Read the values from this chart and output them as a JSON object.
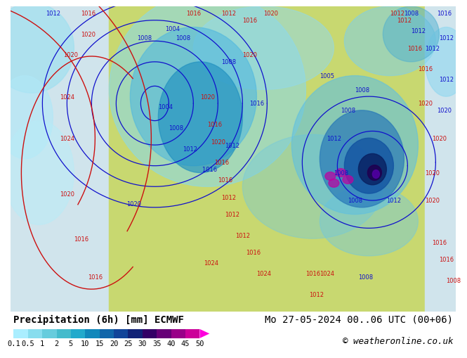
{
  "title_left": "Precipitation (6h) [mm] ECMWF",
  "title_right": "Mo 27-05-2024 00..06 UTC (00+06)",
  "copyright": "© weatheronline.co.uk",
  "colorbar_levels": [
    0.1,
    0.5,
    1,
    2,
    5,
    10,
    15,
    20,
    25,
    30,
    35,
    40,
    45,
    50
  ],
  "colorbar_colors": [
    "#aaeeff",
    "#88ddee",
    "#66ccdd",
    "#44bbcc",
    "#22aacc",
    "#1188bb",
    "#1166aa",
    "#114499",
    "#112277",
    "#330066",
    "#660077",
    "#990088",
    "#cc0099",
    "#ee00bb",
    "#ff00dd"
  ],
  "ocean_color": "#c8dce8",
  "land_color": "#e8e8d8",
  "prec_colors": {
    "very_light": "#c0f0f8",
    "light": "#80d8f0",
    "medium": "#40b8e0",
    "moderate": "#2090c0",
    "heavy": "#1060a0",
    "very_heavy": "#082070",
    "intense": "#200050",
    "extreme": "#500070",
    "land_green": "#d4e8a0"
  },
  "bg_bottom": "#ffffff",
  "contour_blue": "#1010cc",
  "contour_red": "#cc1010",
  "label_fontsize": 6,
  "title_fontsize": 10,
  "copyright_fontsize": 9
}
